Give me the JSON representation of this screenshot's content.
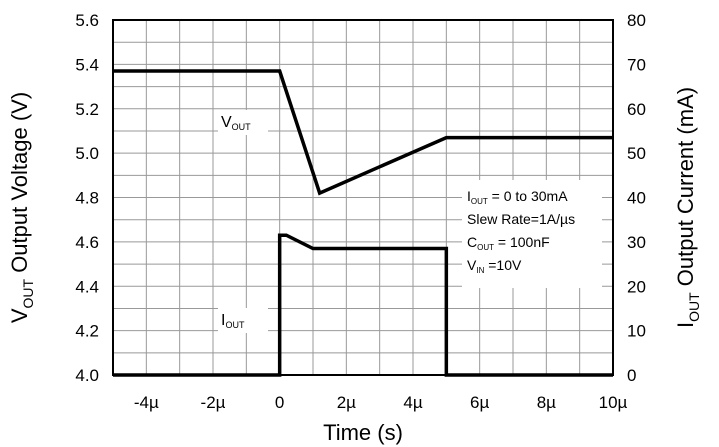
{
  "chart_data": {
    "type": "line",
    "title": "",
    "xlabel": "Time (s)",
    "ylabel_left": {
      "main": "V",
      "sub": "OUT",
      "rest": " Output Voltage (V)"
    },
    "ylabel_right": {
      "main": "I",
      "sub": "OUT",
      "rest": " Output Current (mA)"
    },
    "xlim": [
      -5,
      10
    ],
    "ylim_left": [
      4.0,
      5.6
    ],
    "ylim_right": [
      0,
      80
    ],
    "x_unit": "µs",
    "x_ticks": [
      -4,
      -2,
      0,
      2,
      4,
      6,
      8,
      10
    ],
    "x_tick_labels": [
      "-4µ",
      "-2µ",
      "0",
      "2µ",
      "4µ",
      "6µ",
      "8µ",
      "10µ"
    ],
    "y_left_ticks": [
      4.0,
      4.2,
      4.4,
      4.6,
      4.8,
      5.0,
      5.2,
      5.4,
      5.6
    ],
    "y_left_tick_labels": [
      "4.0",
      "4.2",
      "4.4",
      "4.6",
      "4.8",
      "5.0",
      "5.2",
      "5.4",
      "5.6"
    ],
    "y_right_ticks": [
      0,
      10,
      20,
      30,
      40,
      50,
      60,
      70,
      80
    ],
    "y_right_tick_labels": [
      "0",
      "10",
      "20",
      "30",
      "40",
      "50",
      "60",
      "70",
      "80"
    ],
    "grid": true,
    "grid_x_step": 1,
    "grid_y_left_step": 0.1,
    "series": [
      {
        "name": "VOUT",
        "axis": "left",
        "x": [
          -5,
          0,
          1.2,
          5,
          10
        ],
        "y": [
          5.37,
          5.37,
          4.82,
          5.07,
          5.07
        ]
      },
      {
        "name": "IOUT",
        "axis": "right",
        "x": [
          -5,
          0,
          0,
          0.2,
          1.0,
          5,
          5,
          10
        ],
        "y": [
          0,
          0,
          31.5,
          31.5,
          28.5,
          28.5,
          0,
          0
        ]
      }
    ],
    "trace_labels": [
      {
        "main": "V",
        "sub": "OUT",
        "series": "VOUT"
      },
      {
        "main": "I",
        "sub": "OUT",
        "series": "IOUT"
      }
    ],
    "annotation": [
      {
        "main": "I",
        "sub": "OUT",
        "rest": " = 0 to 30mA"
      },
      {
        "main": "Slew Rate=1A/",
        "sub": "",
        "rest": "µs"
      },
      {
        "main": "C",
        "sub": "OUT",
        "rest": " = 100nF"
      },
      {
        "main": "V",
        "sub": "IN",
        "rest": " =10V"
      }
    ]
  }
}
